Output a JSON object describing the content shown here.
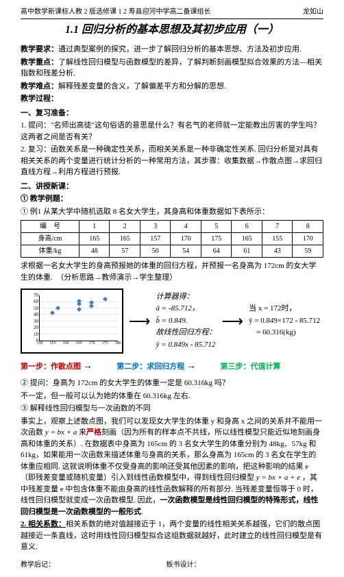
{
  "header": {
    "left": "高中数学新课标人教 2 版选修课 1 2 寿县迎河中学高二备课组长",
    "right": "龙如山"
  },
  "title": "1.1 回归分析的基本思想及其初步应用（一）",
  "req": {
    "label": "教学要求：",
    "text": "通过典型案例的探究，进一步了解回归分析的基本思想、方法及初步应用."
  },
  "focus": {
    "label": "教学重点：",
    "text": "了解线性回归模型与函数模型的差异，了解判断刻画模型拟合效果的方法—相关指数和残差分析."
  },
  "diff": {
    "label": "教学难点：",
    "text": "解释残差变量的含义，了解偏差平方和分解的思想."
  },
  "proc": "教学过程：",
  "s1": "一、复习准备：",
  "p1a": "1. 提问：\"名师出高徒\"这句俗语的意思是什么？有名气的老师就一定能教出厉害的学生吗？这两者之间是否有关？",
  "p1b": "2. 复习：函数关系是一种确定性关系，而相关关系是一种非确定性关系. 回归分析是对具有相关关系的两个变量进行统计分析的一种常用方法，其步骤：收集数据→作散点图→求回归直线方程→利用方程进行预报.",
  "s2": "二、讲授新课：",
  "s2a": "① 教学例题：",
  "ex1": "① 例1 从某大学中随机选取 8 名女大学生，其身高和体重数据如下表所示：",
  "table": {
    "rows": [
      [
        "编　号",
        "1",
        "2",
        "3",
        "4",
        "5",
        "6",
        "7",
        "8"
      ],
      [
        "身高/cm",
        "165",
        "165",
        "157",
        "170",
        "175",
        "165",
        "155",
        "170"
      ],
      [
        "体重/kg",
        "48",
        "57",
        "50",
        "54",
        "64",
        "61",
        "43",
        "59"
      ]
    ]
  },
  "ex1b": "求根据一名女大学生的身高预报她的体重的回归方程，并预报一名身高为 172cm 的女大学生的体重.　（分析思路→教师演示→学生整理）",
  "chart": {
    "yticks": [
      70,
      60,
      50,
      40,
      30,
      20,
      10,
      0
    ],
    "xticks": [
      "150",
      "155",
      "160",
      "165",
      "170",
      "175",
      "180"
    ],
    "points": [
      {
        "x": 157,
        "y": 50
      },
      {
        "x": 165,
        "y": 48
      },
      {
        "x": 165,
        "y": 57
      },
      {
        "x": 165,
        "y": 61
      },
      {
        "x": 170,
        "y": 54
      },
      {
        "x": 170,
        "y": 59
      },
      {
        "x": 155,
        "y": 43
      },
      {
        "x": 175,
        "y": 64
      }
    ],
    "xlim": [
      150,
      180
    ],
    "ylim": [
      0,
      70
    ]
  },
  "calc": {
    "t": "计算器得：",
    "a": "â = -85.712，",
    "b": "b̂ = 0.849.",
    "l": "故线性回归方程：",
    "eq": "ŷ = 0.849x - 85.712"
  },
  "res": {
    "l1": "当 x = 172时，",
    "l2": "ŷ = 0.849×172 - 85.712",
    "l3": "= 60.316(kg)"
  },
  "steps": {
    "s1": "第一步：作散点图",
    "s2": "第二步：求回归方程",
    "s3": "第三步：代值计算"
  },
  "q2": {
    "a": "② 提问：身高为 172cm 的女大学生的体重一定是 60.316kg 吗？",
    "b": "不一定，但一般可以认为她的体重在 60.316kg 左右.",
    "c": "③ 解释线性回归模型与一次函数的不同"
  },
  "para": "事实上，观察上述散点图，我们可以发现女大学生的体重 y 和身高 x 之间的关系并不能用一次函数 y = bx + a 来严格刻画（因为所有的样本点不共线，所以线性模型只能近似地刻画身高和体重的关系）. 在数据表中身高为 165cm 的 3 名女大学生的体重分别为 48kg、57kg 和 61kg，如果能用一次函数来描述体重与身高的关系，那么身高为 165cm 的 3 名女在学生的体重应相同. 这就说明体重不仅受身高的影响还受其他因素的影响，把这种影响的结果 e（即残差变量或随机变量）引入到线性函数模型中，得到线性回归模型 y = bx + a + e ，其中残差变量 e 中包含体重不能由身高的线性函数解释的所有部分. 当残差变量恒等于 0 时，线性回归模型就变成一次函数模型. 因此，一次函数模型是线性回归模型的特殊形式，线性回归模型是一次函数模型的一般形式.",
  "ss": "2. 相关系数：",
  "sstext": "相关系数的绝对值越接近于 1，两个变量的线性相关关系越强，它们的散点图越接近一条直线，这时用线性回归模型拟合这组数据就越好，此时建立的线性回归模型是有意义.",
  "footer": {
    "l": "教学后记：",
    "r": "板书设计："
  }
}
